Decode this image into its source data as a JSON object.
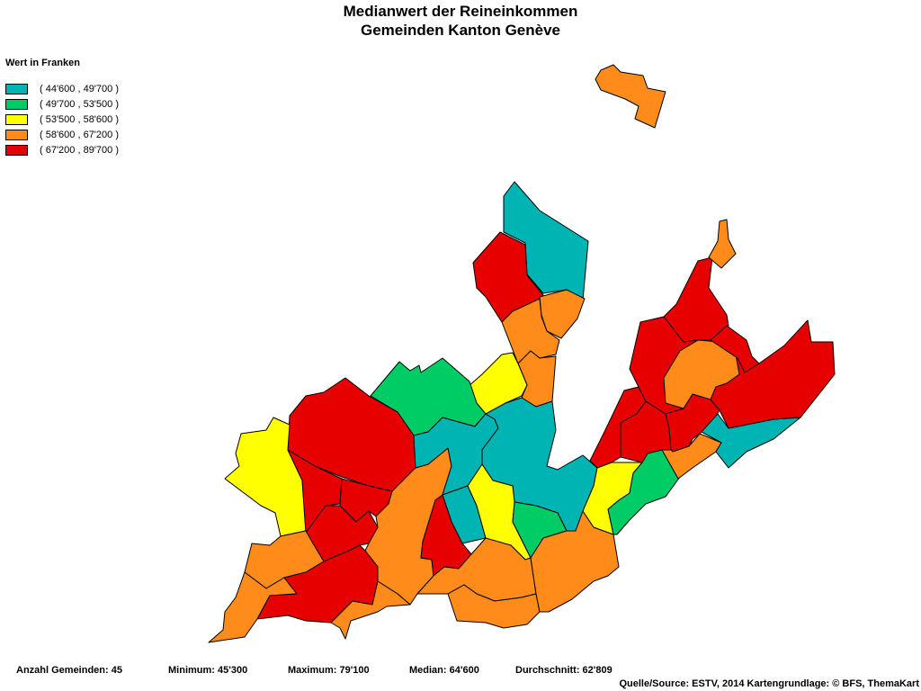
{
  "title": {
    "line1": "Medianwert der Reineinkommen",
    "line2": "Gemeinden Kanton Genève"
  },
  "legend": {
    "title": "Wert in Franken",
    "classes": [
      {
        "label": "( 44'600 , 49'700 )",
        "color": "#00B4B4"
      },
      {
        "label": "( 49'700 , 53'500 )",
        "color": "#00CC66"
      },
      {
        "label": "( 53'500 , 58'600 )",
        "color": "#FFFF00"
      },
      {
        "label": "( 58'600 , 67'200 )",
        "color": "#FF8C1A"
      },
      {
        "label": "( 67'200 , 89'700 )",
        "color": "#E60000"
      }
    ]
  },
  "stats": {
    "count": "Anzahl Gemeinden: 45",
    "minimum": "Minimum: 45'300",
    "maximum": "Maximum: 79'100",
    "median": "Median: 64'600",
    "average": "Durchschnitt: 62'809"
  },
  "source": "Quelle/Source: ESTV, 2014 Kartengrundlage: © BFS, ThemaKart"
}
